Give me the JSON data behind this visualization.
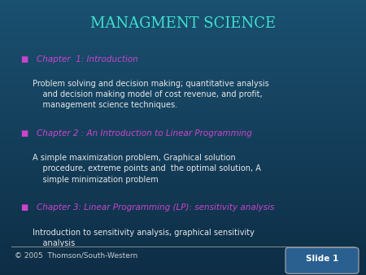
{
  "title": "MANAGMENT SCIENCE",
  "title_color": "#40e0d0",
  "bg_color_top": "#1a5070",
  "bg_color_bottom": "#0d2d45",
  "bullet_color": "#cc44cc",
  "body_color": "#e8e8e8",
  "footer_left": "© 2005  Thomson/South-Western",
  "footer_right": "Slide 1",
  "footer_color": "#cccccc",
  "items": [
    {
      "type": "bullet",
      "text": "Chapter  1: Introduction"
    },
    {
      "type": "body",
      "text": "Problem solving and decision making; quantitative analysis\n    and decision making model of cost revenue, and profit,\n    management science techniques."
    },
    {
      "type": "bullet",
      "text": "Chapter 2 : An Introduction to Linear Programming"
    },
    {
      "type": "body",
      "text": "A simple maximization problem, Graphical solution\n    procedure, extreme points and  the optimal solution, A\n    simple minimization problem"
    },
    {
      "type": "bullet",
      "text": "Chapter 3: Linear Programming (LP): sensitivity analysis"
    },
    {
      "type": "body",
      "text": "Introduction to sensitivity analysis, graphical sensitivity\n    analysis"
    }
  ]
}
